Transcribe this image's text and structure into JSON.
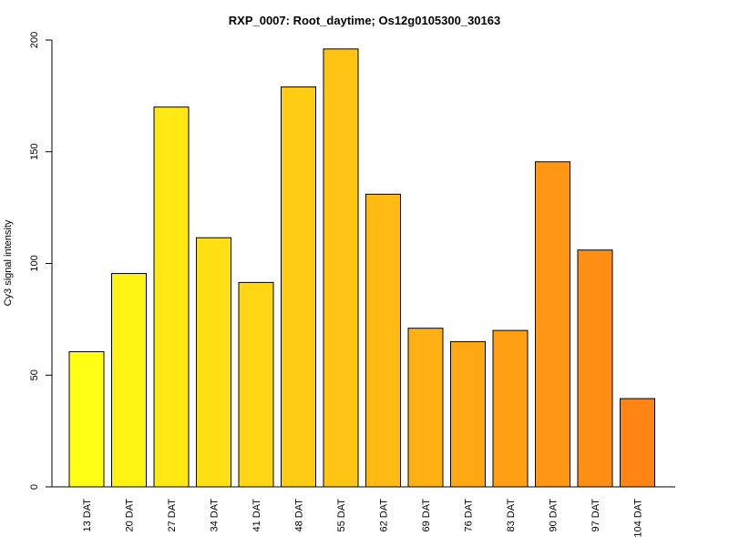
{
  "chart_data": {
    "type": "bar",
    "title": "RXP_0007: Root_daytime; Os12g0105300_30163",
    "xlabel": "",
    "ylabel": "Cy3 signal intensity",
    "ylim": [
      0,
      200
    ],
    "yticks": [
      0,
      50,
      100,
      150,
      200
    ],
    "categories": [
      "13 DAT",
      "20 DAT",
      "27 DAT",
      "34 DAT",
      "41 DAT",
      "48 DAT",
      "55 DAT",
      "62 DAT",
      "69 DAT",
      "76 DAT",
      "83 DAT",
      "90 DAT",
      "97 DAT",
      "104 DAT"
    ],
    "values": [
      60.5,
      95.5,
      170,
      111.5,
      91.5,
      179,
      196,
      131,
      71,
      65,
      70,
      145.5,
      106,
      39.5
    ],
    "colors": [
      "#ffff16",
      "#fff314",
      "#ffe814",
      "#ffe014",
      "#ffd614",
      "#ffcc14",
      "#ffc414",
      "#ffba14",
      "#ffb114",
      "#ffa814",
      "#ffa014",
      "#ff9614",
      "#ff8e14",
      "#ff8414"
    ],
    "grid": false,
    "legend": "none"
  }
}
